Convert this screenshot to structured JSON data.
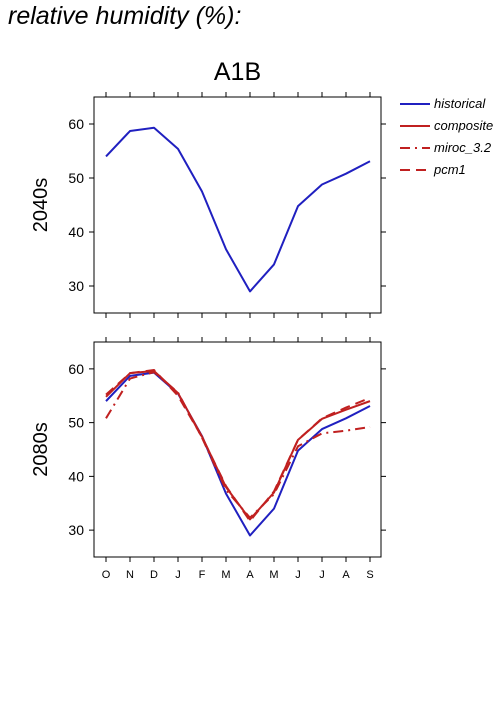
{
  "page": {
    "title": "relative humidity (%):"
  },
  "chart_data": {
    "type": "line",
    "title": "A1B",
    "categories": [
      "O",
      "N",
      "D",
      "J",
      "F",
      "M",
      "A",
      "M",
      "J",
      "J",
      "A",
      "S"
    ],
    "ylim": [
      25,
      65
    ],
    "yticks": [
      30,
      40,
      50,
      60
    ],
    "grid": false,
    "legend_position": "top-right",
    "panels": [
      {
        "label": "2040s",
        "series": [
          {
            "name": "historical",
            "color": "#2020c0",
            "dash": "solid",
            "values": [
              54,
              58.7,
              59.3,
              55.4,
              47.5,
              36.8,
              29,
              34,
              44.8,
              48.8,
              50.8,
              53.1
            ]
          }
        ]
      },
      {
        "label": "2080s",
        "series": [
          {
            "name": "historical",
            "color": "#2020c0",
            "dash": "solid",
            "values": [
              54,
              58.7,
              59.3,
              55.4,
              47.5,
              36.8,
              29,
              34,
              44.8,
              48.8,
              50.8,
              53.1
            ]
          },
          {
            "name": "composite",
            "color": "#c02020",
            "dash": "solid",
            "values": [
              54.8,
              59.2,
              59.6,
              55.5,
              47.4,
              38,
              32,
              37,
              46.8,
              50.7,
              52.4,
              54
            ]
          },
          {
            "name": "miroc_3.2",
            "color": "#c02020",
            "dash": "dashdot",
            "values": [
              50.8,
              58.2,
              59.4,
              55.6,
              47.2,
              37.5,
              32.3,
              36.7,
              45.6,
              48,
              48.5,
              49.2
            ]
          },
          {
            "name": "pcm1",
            "color": "#c02020",
            "dash": "dash",
            "values": [
              55.2,
              59.2,
              59.8,
              55,
              47.3,
              38.2,
              31.7,
              37.2,
              46.8,
              50.8,
              52.8,
              54.6
            ]
          }
        ]
      }
    ]
  }
}
